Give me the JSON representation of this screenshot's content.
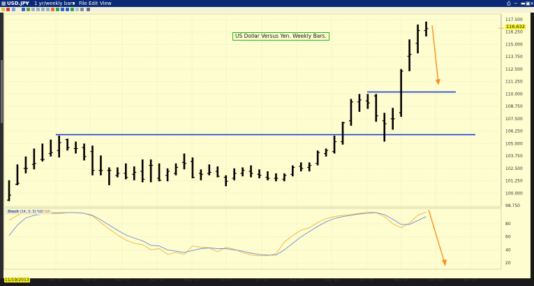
{
  "window": {
    "symbol": "USD.JPY",
    "timeframe": "1 yr/weekly bars",
    "menu": [
      "File",
      "Edit",
      "View"
    ]
  },
  "annotation": {
    "title": "US Dollar Versus Yen.  Weekly Bars."
  },
  "price_axis": {
    "ticks": [
      "117.500",
      "116.250",
      "115.000",
      "113.750",
      "112.500",
      "111.250",
      "110.000",
      "108.750",
      "107.500",
      "106.250",
      "105.000",
      "103.750",
      "102.500",
      "101.250",
      "100.000",
      "98.750"
    ],
    "last_price": "116.632"
  },
  "stoch_axis": {
    "ticks": [
      "80",
      "60",
      "40",
      "20"
    ]
  },
  "time_axis": {
    "start_date": "11/19/2013",
    "ticks": [
      "Jan '14",
      "Feb '14",
      "Mar '14",
      "Apr '14",
      "May '14",
      "Jun '14",
      "Jul '14",
      "Aug '14",
      "Sep '14",
      "Oct '14",
      "Nov '14",
      "Dec '14",
      "Jan '15"
    ]
  },
  "stoch_legend": {
    "name": "Stoch",
    "params": "(14, 3, 3)",
    "k_label": "%K",
    "d_label": "%D"
  },
  "colors": {
    "background": "#fefdcf",
    "bars": "#000000",
    "support_lines": "#1a3fd6",
    "arrow": "#f5931e",
    "stoch_k": "#f5b042",
    "stoch_d": "#6a8fd6",
    "title_border": "#1fb81f",
    "highlight": "#f5ee1c"
  },
  "chart_data": [
    {
      "type": "ohlc",
      "title": "US Dollar Versus Yen.  Weekly Bars.",
      "symbol": "USD.JPY",
      "interval": "weekly",
      "ylabel": "Price",
      "ylim": [
        98.5,
        118.0
      ],
      "grid": true,
      "bars": [
        {
          "o": 99.3,
          "h": 101.3,
          "l": 99.2,
          "c": 99.8
        },
        {
          "o": 100.9,
          "h": 102.9,
          "l": 100.8,
          "c": 101.0
        },
        {
          "o": 102.5,
          "h": 103.7,
          "l": 102.0,
          "c": 102.5
        },
        {
          "o": 102.9,
          "h": 104.5,
          "l": 102.4,
          "c": 103.0
        },
        {
          "o": 103.4,
          "h": 105.0,
          "l": 103.2,
          "c": 103.4
        },
        {
          "o": 104.0,
          "h": 105.4,
          "l": 103.7,
          "c": 104.1
        },
        {
          "o": 104.3,
          "h": 105.8,
          "l": 103.6,
          "c": 105.1
        },
        {
          "o": 105.4,
          "h": 105.5,
          "l": 104.3,
          "c": 104.6
        },
        {
          "o": 104.5,
          "h": 105.2,
          "l": 104.0,
          "c": 104.5
        },
        {
          "o": 104.6,
          "h": 105.0,
          "l": 103.3,
          "c": 103.7
        },
        {
          "o": 104.2,
          "h": 104.8,
          "l": 101.8,
          "c": 102.3
        },
        {
          "o": 102.3,
          "h": 103.8,
          "l": 101.8,
          "c": 102.3
        },
        {
          "o": 102.3,
          "h": 102.6,
          "l": 100.8,
          "c": 102.3
        },
        {
          "o": 101.8,
          "h": 102.6,
          "l": 101.6,
          "c": 102.0
        },
        {
          "o": 102.0,
          "h": 103.0,
          "l": 101.4,
          "c": 101.6
        },
        {
          "o": 101.9,
          "h": 102.7,
          "l": 101.3,
          "c": 102.1
        },
        {
          "o": 102.2,
          "h": 103.4,
          "l": 101.1,
          "c": 101.4
        },
        {
          "o": 102.8,
          "h": 103.4,
          "l": 101.1,
          "c": 102.8
        },
        {
          "o": 101.5,
          "h": 103.0,
          "l": 101.2,
          "c": 101.3
        },
        {
          "o": 101.8,
          "h": 102.5,
          "l": 101.2,
          "c": 102.2
        },
        {
          "o": 102.0,
          "h": 103.0,
          "l": 101.8,
          "c": 102.6
        },
        {
          "o": 103.1,
          "h": 104.0,
          "l": 102.4,
          "c": 103.0
        },
        {
          "o": 103.2,
          "h": 103.6,
          "l": 101.5,
          "c": 101.6
        },
        {
          "o": 102.0,
          "h": 102.4,
          "l": 101.3,
          "c": 101.9
        },
        {
          "o": 102.0,
          "h": 102.9,
          "l": 101.8,
          "c": 102.1
        },
        {
          "o": 102.2,
          "h": 102.7,
          "l": 101.6,
          "c": 101.7
        },
        {
          "o": 101.6,
          "h": 101.8,
          "l": 100.7,
          "c": 101.2
        },
        {
          "o": 101.5,
          "h": 102.5,
          "l": 101.3,
          "c": 102.0
        },
        {
          "o": 102.0,
          "h": 102.6,
          "l": 101.7,
          "c": 102.3
        },
        {
          "o": 102.2,
          "h": 102.8,
          "l": 101.6,
          "c": 102.0
        },
        {
          "o": 101.9,
          "h": 102.4,
          "l": 101.5,
          "c": 101.8
        },
        {
          "o": 101.6,
          "h": 102.2,
          "l": 101.3,
          "c": 101.5
        },
        {
          "o": 101.5,
          "h": 102.0,
          "l": 101.2,
          "c": 101.5
        },
        {
          "o": 101.4,
          "h": 102.0,
          "l": 101.2,
          "c": 101.8
        },
        {
          "o": 101.9,
          "h": 102.8,
          "l": 101.7,
          "c": 102.6
        },
        {
          "o": 102.7,
          "h": 103.1,
          "l": 102.2,
          "c": 102.5
        },
        {
          "o": 102.6,
          "h": 103.1,
          "l": 102.2,
          "c": 102.8
        },
        {
          "o": 103.0,
          "h": 104.3,
          "l": 102.8,
          "c": 104.1
        },
        {
          "o": 104.0,
          "h": 104.5,
          "l": 103.7,
          "c": 104.3
        },
        {
          "o": 104.2,
          "h": 105.8,
          "l": 104.0,
          "c": 105.2
        },
        {
          "o": 105.2,
          "h": 107.2,
          "l": 104.9,
          "c": 107.1
        },
        {
          "o": 107.3,
          "h": 109.5,
          "l": 106.8,
          "c": 109.2
        },
        {
          "o": 109.2,
          "h": 110.0,
          "l": 108.2,
          "c": 109.4
        },
        {
          "o": 109.3,
          "h": 110.0,
          "l": 108.5,
          "c": 109.1
        },
        {
          "o": 109.8,
          "h": 110.0,
          "l": 107.2,
          "c": 107.8
        },
        {
          "o": 107.3,
          "h": 108.1,
          "l": 105.2,
          "c": 107.0
        },
        {
          "o": 107.5,
          "h": 108.6,
          "l": 106.4,
          "c": 107.5
        },
        {
          "o": 108.1,
          "h": 112.5,
          "l": 107.7,
          "c": 112.3
        },
        {
          "o": 113.8,
          "h": 115.5,
          "l": 112.3,
          "c": 114.0
        },
        {
          "o": 115.1,
          "h": 117.0,
          "l": 114.1,
          "c": 116.4
        },
        {
          "o": 116.4,
          "h": 117.3,
          "l": 115.8,
          "c": 116.6
        }
      ],
      "horizontal_lines": [
        {
          "price": 105.9,
          "from_bar": 6,
          "to": "Jan '15"
        },
        {
          "price": 110.2,
          "from_bar": 42,
          "to": "Dec '14"
        }
      ],
      "annotations": [
        {
          "type": "arrow",
          "color": "orange",
          "from_price": 116.9,
          "to_price": 111.2,
          "meaning": "projected decline"
        }
      ],
      "last_price": 116.632
    },
    {
      "type": "line",
      "title": "Stoch (14, 3, 3)",
      "ylim": [
        0,
        100
      ],
      "yticks": [
        20,
        40,
        60,
        80
      ],
      "series": [
        {
          "name": "%K",
          "color": "orange",
          "values": [
            85,
            93,
            96,
            97,
            97,
            97,
            97,
            97,
            97,
            96,
            92,
            82,
            72,
            63,
            55,
            50,
            48,
            40,
            42,
            33,
            36,
            33,
            46,
            44,
            43,
            37,
            44,
            41,
            36,
            32,
            31,
            31,
            34,
            52,
            62,
            70,
            74,
            82,
            88,
            91,
            93,
            94,
            96,
            98,
            97,
            91,
            80,
            74,
            81,
            93,
            98
          ]
        },
        {
          "name": "%D",
          "color": "blue",
          "values": [
            62,
            78,
            89,
            93,
            95,
            96,
            96,
            97,
            97,
            96,
            93,
            86,
            78,
            70,
            63,
            58,
            54,
            47,
            46,
            40,
            38,
            36,
            39,
            42,
            43,
            42,
            42,
            40,
            38,
            35,
            33,
            32,
            32,
            40,
            50,
            60,
            68,
            76,
            83,
            88,
            91,
            93,
            95,
            96,
            97,
            94,
            87,
            79,
            79,
            85,
            91
          ]
        }
      ],
      "annotations": [
        {
          "type": "arrow",
          "color": "orange",
          "from": 98,
          "to": 13,
          "meaning": "projected decline"
        }
      ]
    }
  ]
}
